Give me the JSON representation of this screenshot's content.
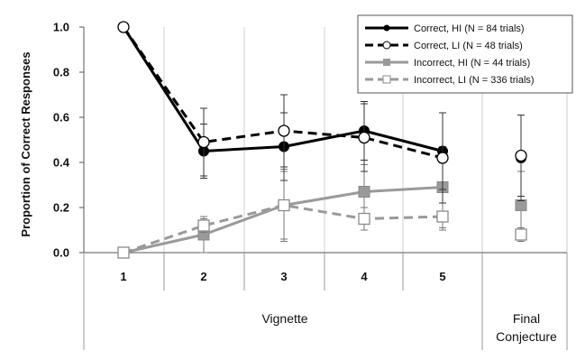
{
  "chart_data": {
    "type": "line",
    "ylabel": "Proportion of Correct Responses",
    "xlabel": "Vignette",
    "final_label_line1": "Final",
    "final_label_line2": "Conjecture",
    "categories": [
      "1",
      "2",
      "3",
      "4",
      "5"
    ],
    "yticks": [
      "0.0",
      "0.2",
      "0.4",
      "0.6",
      "0.8",
      "1.0"
    ],
    "ylim": [
      0,
      1
    ],
    "grid": "vertical",
    "legend_position": "top-right",
    "series": [
      {
        "name": "Correct,  HI (N = 84 trials)",
        "color": "#000000",
        "line": "solid",
        "marker": "filled-circle",
        "values": [
          1.0,
          0.45,
          0.47,
          0.54,
          0.45
        ],
        "err": [
          0,
          0.12,
          0.15,
          0.13,
          0.17
        ],
        "final": 0.42,
        "final_err": 0.19
      },
      {
        "name": "Correct,  LI (N = 48 trials)",
        "color": "#000000",
        "line": "dashed",
        "marker": "open-circle",
        "values": [
          1.0,
          0.49,
          0.54,
          0.51,
          0.42
        ],
        "err": [
          0,
          0.15,
          0.16,
          0.15,
          0.2
        ],
        "final": 0.43,
        "final_err": 0.18
      },
      {
        "name": "Incorrect, HI (N = 44 trials)",
        "color": "#9a9a9a",
        "line": "solid",
        "marker": "filled-square",
        "values": [
          0.0,
          0.08,
          0.21,
          0.27,
          0.29
        ],
        "err": [
          0,
          0.08,
          0.16,
          0.12,
          0.18
        ],
        "final": 0.21,
        "final_err": 0.15
      },
      {
        "name": "Incorrect,  LI (N = 336 trials)",
        "color": "#9a9a9a",
        "line": "dashed",
        "marker": "open-square",
        "values": [
          0.0,
          0.12,
          0.21,
          0.15,
          0.16
        ],
        "err": [
          0,
          0.03,
          0.15,
          0.05,
          0.06
        ],
        "final": 0.08,
        "final_err": 0.03
      }
    ]
  }
}
